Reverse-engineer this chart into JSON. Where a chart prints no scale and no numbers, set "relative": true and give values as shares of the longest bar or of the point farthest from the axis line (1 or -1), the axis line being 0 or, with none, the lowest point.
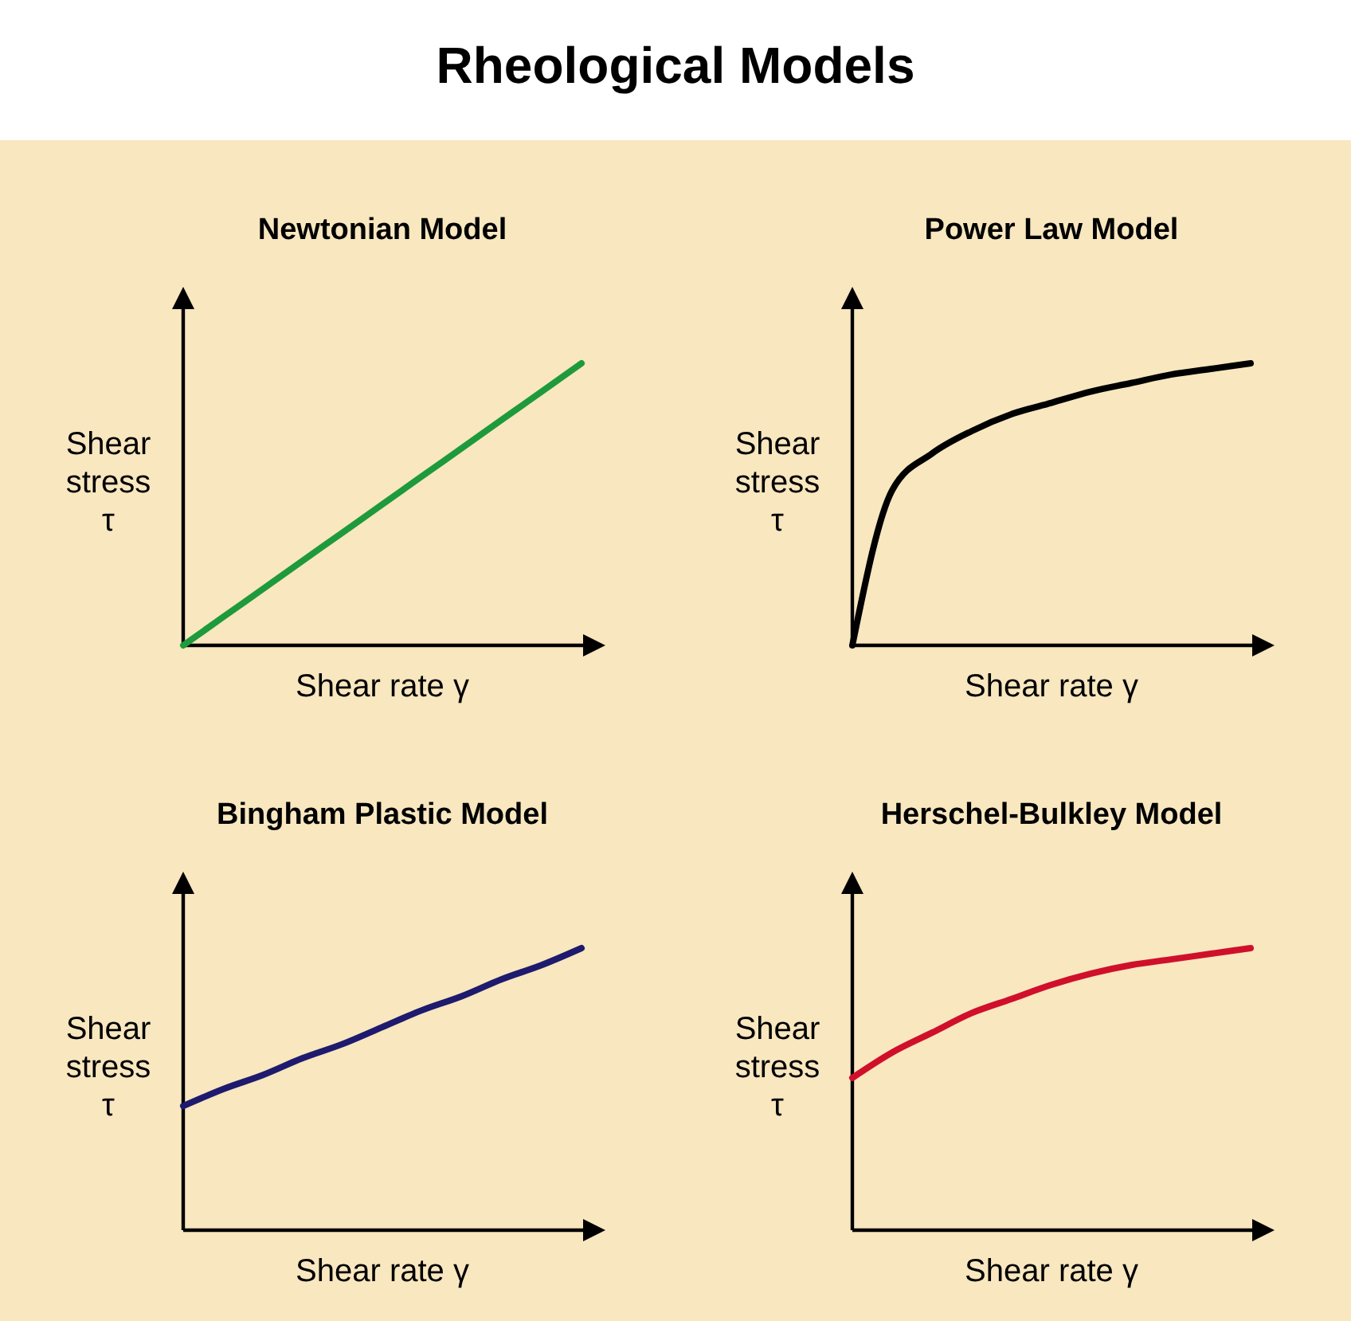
{
  "chart_data": [
    {
      "type": "line",
      "title": "Newtonian Model",
      "xlabel": "Shear rate γ",
      "ylabel": "Shear stress τ",
      "annotations": [
        "Rheological Models"
      ],
      "relative": true,
      "categories": [
        null,
        null,
        null,
        null,
        null,
        null,
        null,
        null,
        null,
        null,
        null
      ],
      "series": [
        {
          "color": "#1e9a3c",
          "values": [
            0,
            0.1,
            0.2,
            0.3,
            0.4,
            0.5,
            0.6,
            0.7,
            0.8,
            0.9,
            1
          ]
        }
      ]
    },
    {
      "type": "line",
      "title": "Power Law Model",
      "xlabel": "Shear rate γ",
      "ylabel": "Shear stress τ",
      "relative": true,
      "categories": [
        null,
        null,
        null,
        null,
        null,
        null,
        null,
        null,
        null,
        null,
        null
      ],
      "series": [
        {
          "color": "#000000",
          "values": [
            0,
            0.55,
            0.68,
            0.76,
            0.82,
            0.86,
            0.9,
            0.93,
            0.96,
            0.98,
            1
          ]
        }
      ]
    },
    {
      "type": "line",
      "title": "Bingham Plastic Model",
      "xlabel": "Shear rate γ",
      "ylabel": "Shear stress τ",
      "relative": true,
      "categories": [
        null,
        null,
        null,
        null,
        null,
        null,
        null,
        null,
        null,
        null,
        null
      ],
      "series": [
        {
          "color": "#1e1a6e",
          "values": [
            0.44,
            0.5,
            0.55,
            0.61,
            0.66,
            0.72,
            0.78,
            0.83,
            0.89,
            0.94,
            1
          ]
        }
      ]
    },
    {
      "type": "line",
      "title": "Herschel-Bulkley Model",
      "xlabel": "Shear rate γ",
      "ylabel": "Shear stress τ",
      "relative": true,
      "categories": [
        null,
        null,
        null,
        null,
        null,
        null,
        null,
        null,
        null,
        null,
        null
      ],
      "series": [
        {
          "color": "#d0102a",
          "values": [
            0.54,
            0.63,
            0.7,
            0.77,
            0.82,
            0.87,
            0.91,
            0.94,
            0.96,
            0.98,
            1
          ]
        }
      ]
    }
  ]
}
